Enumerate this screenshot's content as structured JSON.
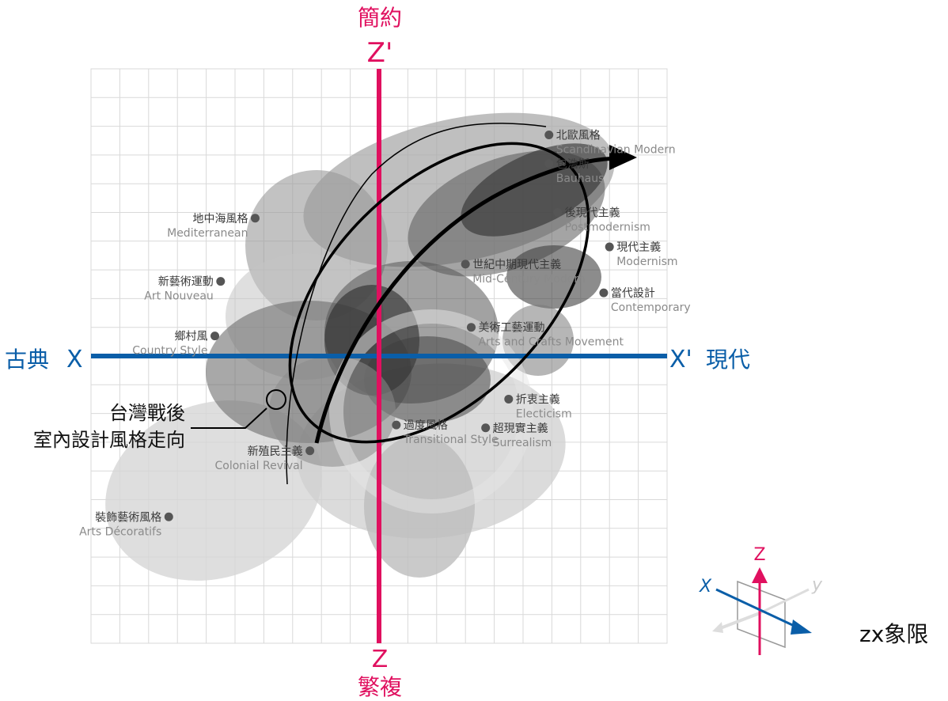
{
  "chart_data": {
    "type": "scatter",
    "xlim": [
      -10,
      10
    ],
    "ylim": [
      -10,
      10
    ],
    "grid": true,
    "axes": {
      "x_left_label": "古典",
      "x_left_symbol": "X",
      "x_right_symbol": "X'",
      "x_right_label": "現代",
      "z_top_label": "簡約",
      "z_top_symbol": "Z'",
      "z_bottom_symbol": "Z",
      "z_bottom_label": "繁複"
    },
    "points": [
      {
        "name": "北歐風格",
        "en": "Scandinavian Modern",
        "x": 5.9,
        "y": 7.7
      },
      {
        "name": "包浩斯",
        "en": "Bauhaus",
        "x": 5.9,
        "y": 6.7
      },
      {
        "name": "後現代主義",
        "en": "Postmodernism",
        "x": 6.2,
        "y": 5.0
      },
      {
        "name": "現代主義",
        "en": "Modernism",
        "x": 8.0,
        "y": 3.8
      },
      {
        "name": "世紀中期現代主義",
        "en": "Mid-Century Modern",
        "x": 3.0,
        "y": 3.2
      },
      {
        "name": "當代設計",
        "en": "Contemporary",
        "x": 7.8,
        "y": 2.2
      },
      {
        "name": "美術工藝運動",
        "en": "Arts and Crafts Movement",
        "x": 3.2,
        "y": 1.0
      },
      {
        "name": "地中海風格",
        "en": "Mediterranean",
        "x": -4.3,
        "y": 4.8
      },
      {
        "name": "新藝術運動",
        "en": "Art Nouveau",
        "x": -5.5,
        "y": 2.6
      },
      {
        "name": "鄉村風",
        "en": "Country Style",
        "x": -5.7,
        "y": 0.7
      },
      {
        "name": "折衷主義",
        "en": "Electicism",
        "x": 4.5,
        "y": -1.5
      },
      {
        "name": "超現實主義",
        "en": "Surrealism",
        "x": 3.7,
        "y": -2.5
      },
      {
        "name": "過度風格",
        "en": "Transitional Style",
        "x": 0.6,
        "y": -2.4
      },
      {
        "name": "新殖民主義",
        "en": "Colonial Revival",
        "x": -2.4,
        "y": -3.3
      },
      {
        "name": "裝飾藝術風格",
        "en": "Arts Décoratifs",
        "x": -7.3,
        "y": -5.6
      }
    ],
    "trend_label_line1": "台灣戰後",
    "trend_label_line2": "室內設計風格走向"
  },
  "legend_3d": {
    "z": "Z",
    "x": "X",
    "y": "y",
    "caption": "zx象限"
  },
  "colors": {
    "x_axis": "#0a5ea8",
    "z_axis": "#e0105f",
    "grid": "#d9d9d9"
  }
}
